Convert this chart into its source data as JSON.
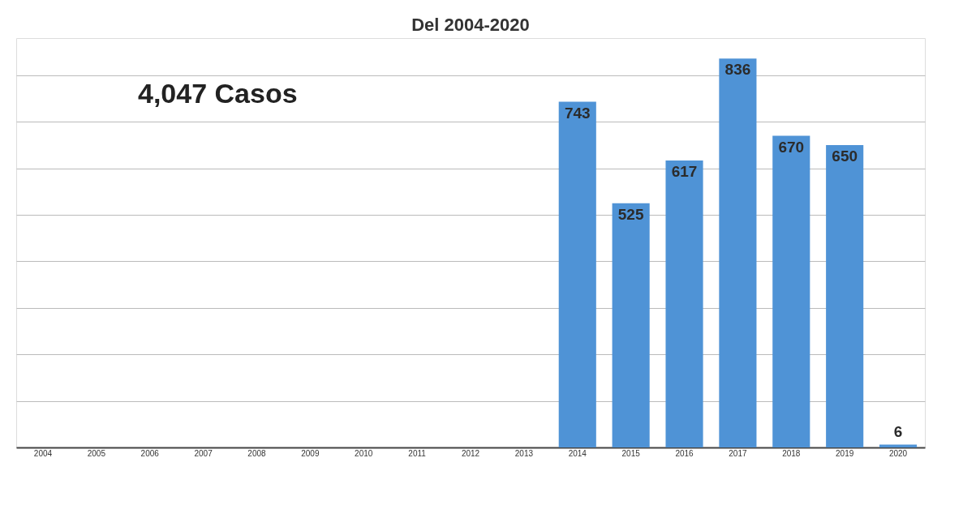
{
  "chart_data": {
    "type": "bar",
    "title": "Del 2004-2020",
    "categories": [
      "2004",
      "2005",
      "2006",
      "2007",
      "2008",
      "2009",
      "2010",
      "2011",
      "2012",
      "2013",
      "2014",
      "2015",
      "2016",
      "2017",
      "2018",
      "2019",
      "2020"
    ],
    "values": [
      null,
      null,
      null,
      null,
      null,
      null,
      null,
      null,
      null,
      null,
      743,
      525,
      617,
      836,
      670,
      650,
      6
    ],
    "color": "#4f93d6",
    "ylim": [
      0,
      880
    ],
    "yticks": [
      {
        "value": 0,
        "label": null
      },
      {
        "value": 100,
        "label": null
      },
      {
        "value": 200,
        "label": null
      },
      {
        "value": 300,
        "label": null
      },
      {
        "value": 400,
        "label": null
      },
      {
        "value": 500,
        "label": null
      },
      {
        "value": 600,
        "label": null
      },
      {
        "value": 700,
        "label": null
      },
      {
        "value": 800,
        "label": null
      }
    ],
    "grid": "y",
    "tick_labels": "x",
    "data_labels": true,
    "annotations": [
      "4,047 Casos"
    ]
  }
}
